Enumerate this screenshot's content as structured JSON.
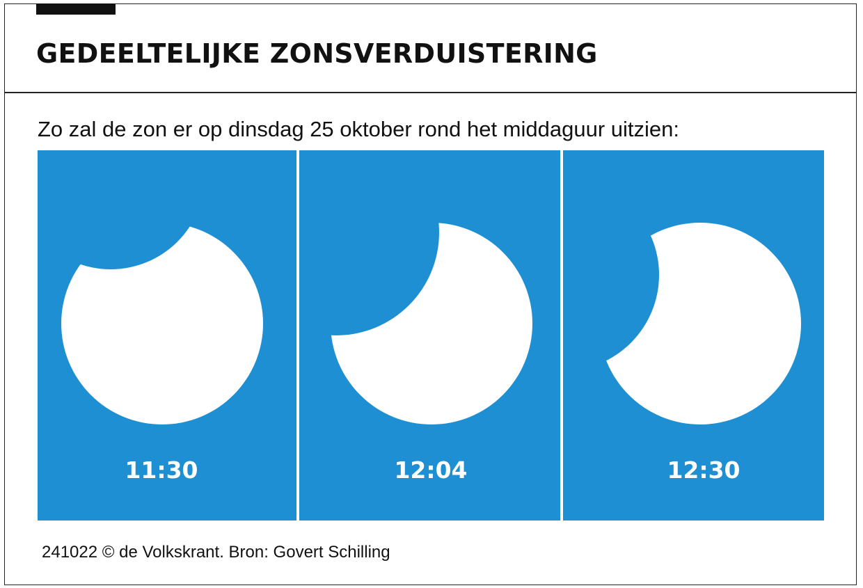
{
  "header": {
    "title": "GEDEELTELIJKE ZONSVERDUISTERING",
    "subtitle": "Zo zal de zon er op dinsdag 25 oktober rond het middaguur uitzien:"
  },
  "colors": {
    "sky": "#1e8fd2",
    "sun": "#ffffff",
    "label": "#ffffff",
    "text": "#111111"
  },
  "phases": [
    {
      "time": "11:30"
    },
    {
      "time": "12:04"
    },
    {
      "time": "12:30"
    }
  ],
  "footer": {
    "credit": "241022 © de Volkskrant. Bron: Govert Schilling"
  }
}
